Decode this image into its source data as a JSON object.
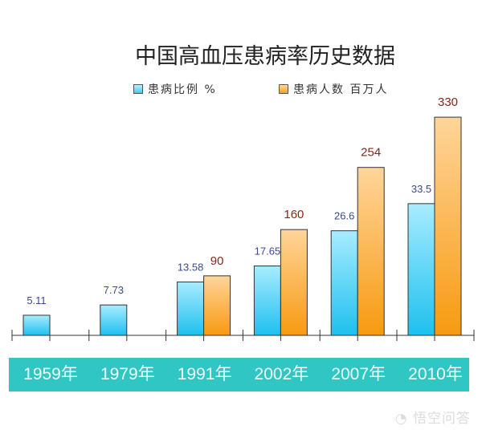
{
  "chart_data": {
    "type": "bar",
    "title": "中国高血压患病率历史数据",
    "categories": [
      "1959年",
      "1979年",
      "1991年",
      "2002年",
      "2007年",
      "2010年"
    ],
    "series": [
      {
        "name": "患病比例 %",
        "values": [
          5.11,
          7.73,
          13.58,
          17.65,
          26.6,
          33.5
        ],
        "labels": [
          "5.11",
          "7.73",
          "13.58",
          "17.65",
          "26.6",
          "33.5"
        ],
        "color": "#3fc9f0",
        "label_color": "#3b4a8c"
      },
      {
        "name": "患病人数 百万人",
        "values": [
          null,
          null,
          90,
          160,
          254,
          330
        ],
        "labels": [
          "",
          "",
          "90",
          "160",
          "254",
          "330"
        ],
        "color": "#f7a020",
        "label_color": "#8a2414"
      }
    ],
    "xlabel": "",
    "ylabel": "",
    "legend": "top",
    "grid": false
  },
  "watermark": "悟空问答"
}
